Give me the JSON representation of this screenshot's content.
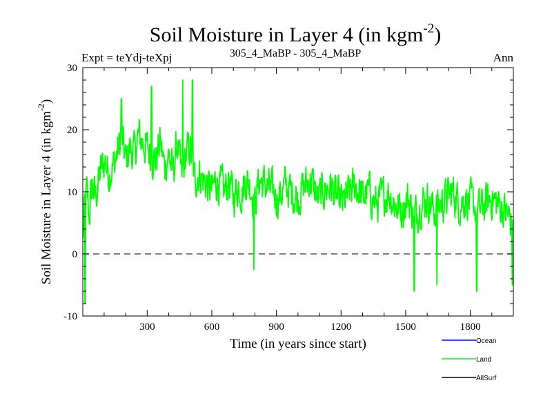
{
  "chart_data": {
    "type": "line",
    "title": "Soil Moisture in Layer 4 (in kgm",
    "title_sup": "-2",
    "title_close": ")",
    "subtitle_left": "Expt = teYdj-teXpj",
    "subtitle_center": "305_4_MaBP - 305_4_MaBP",
    "subtitle_right": "Ann",
    "xlabel": "Time (in years since start)",
    "ylabel": "Soil Moisture in Layer 4 (in kgm",
    "ylabel_sup": "-2",
    "ylabel_close": ")",
    "xlim": [
      1,
      2000
    ],
    "ylim": [
      -10,
      30
    ],
    "xticks": [
      300,
      600,
      900,
      1200,
      1500,
      1800
    ],
    "yticks": [
      -10,
      0,
      10,
      20,
      30
    ],
    "zero_line": 0,
    "legend_position": "bottom-right",
    "series": [
      {
        "name": "Ocean",
        "color": "#0000ff",
        "values": []
      },
      {
        "name": "Land",
        "color": "#00ff00",
        "x": [
          1,
          10,
          20,
          30,
          45,
          60,
          75,
          90,
          105,
          120,
          140,
          160,
          180,
          200,
          220,
          240,
          260,
          280,
          300,
          320,
          340,
          360,
          380,
          400,
          420,
          440,
          460,
          480,
          500,
          520,
          540,
          560,
          580,
          600,
          620,
          640,
          660,
          680,
          700,
          720,
          740,
          760,
          780,
          800,
          820,
          850,
          880,
          910,
          940,
          970,
          1000,
          1030,
          1060,
          1090,
          1120,
          1150,
          1180,
          1210,
          1240,
          1270,
          1300,
          1330,
          1360,
          1390,
          1420,
          1450,
          1480,
          1510,
          1540,
          1570,
          1600,
          1630,
          1660,
          1690,
          1720,
          1750,
          1780,
          1810,
          1840,
          1870,
          1900,
          1930,
          1960,
          1980,
          2000
        ],
        "values": [
          2,
          8,
          10,
          6,
          11,
          9,
          12,
          14,
          15,
          13,
          14,
          16,
          19,
          15,
          17,
          16,
          19,
          18,
          17,
          16,
          15,
          18,
          14,
          16,
          13,
          18,
          12,
          16,
          17,
          12,
          13,
          12,
          11,
          10,
          12,
          11,
          10,
          12,
          9,
          11,
          10,
          12,
          11,
          8,
          12,
          11,
          10,
          9,
          11,
          10,
          9,
          11,
          12,
          9,
          10,
          11,
          9,
          8,
          10,
          11,
          9,
          10,
          8,
          9,
          10,
          8,
          7,
          9,
          6,
          8,
          9,
          7,
          8,
          9,
          10,
          8,
          9,
          8,
          7,
          8,
          9,
          8,
          7,
          6,
          4
        ],
        "amplitude": 5,
        "extremes": [
          {
            "x": 12,
            "y": -8
          },
          {
            "x": 465,
            "y": 28
          },
          {
            "x": 320,
            "y": 27
          },
          {
            "x": 510,
            "y": 28
          },
          {
            "x": 180,
            "y": 25
          },
          {
            "x": 795,
            "y": -2.5
          },
          {
            "x": 1540,
            "y": -6
          },
          {
            "x": 1645,
            "y": -5
          },
          {
            "x": 1830,
            "y": -6
          },
          {
            "x": 1995,
            "y": -5
          }
        ]
      },
      {
        "name": "AllSurf",
        "color": "#000000",
        "values": []
      }
    ]
  }
}
